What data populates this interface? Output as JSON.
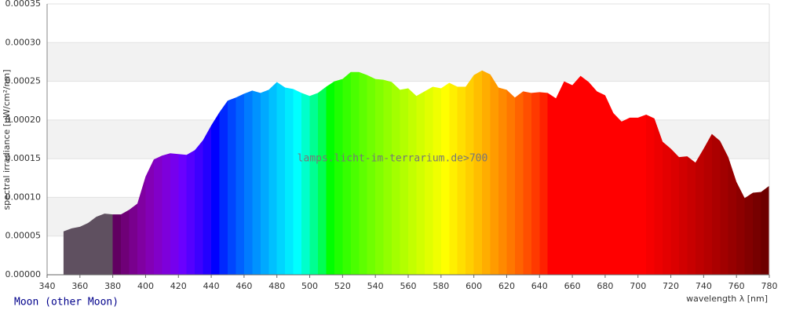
{
  "chart_data": {
    "type": "area",
    "title": "Moon (other Moon)",
    "watermark": "lamps.licht-im-terrarium.de>700",
    "x_label": "wavelength λ [nm]",
    "y_label": "spectral irradiance [µW/cm²/nm]",
    "x": [
      350,
      355,
      360,
      365,
      370,
      375,
      380,
      385,
      390,
      395,
      400,
      405,
      410,
      415,
      420,
      425,
      430,
      435,
      440,
      445,
      450,
      455,
      460,
      465,
      470,
      475,
      480,
      485,
      490,
      495,
      500,
      505,
      510,
      515,
      520,
      525,
      530,
      535,
      540,
      545,
      550,
      555,
      560,
      565,
      570,
      575,
      580,
      585,
      590,
      595,
      600,
      605,
      610,
      615,
      620,
      625,
      630,
      635,
      640,
      645,
      650,
      655,
      660,
      665,
      670,
      675,
      680,
      685,
      690,
      695,
      700,
      705,
      710,
      715,
      720,
      725,
      730,
      735,
      740,
      745,
      750,
      755,
      760,
      765,
      770,
      775,
      780
    ],
    "values": [
      5.6e-05,
      6e-05,
      6.2e-05,
      6.7e-05,
      7.5e-05,
      7.9e-05,
      7.8e-05,
      7.8e-05,
      8.4e-05,
      9.2e-05,
      0.000127,
      0.000149,
      0.000154,
      0.000157,
      0.000156,
      0.000155,
      0.000161,
      0.000174,
      0.000193,
      0.00021,
      0.000225,
      0.000229,
      0.000234,
      0.000238,
      0.000235,
      0.000239,
      0.000249,
      0.000242,
      0.00024,
      0.000235,
      0.000231,
      0.000235,
      0.000243,
      0.00025,
      0.000253,
      0.000262,
      0.000262,
      0.000258,
      0.000253,
      0.000252,
      0.000249,
      0.000239,
      0.000241,
      0.000231,
      0.000237,
      0.000243,
      0.000241,
      0.000248,
      0.000243,
      0.000243,
      0.000258,
      0.000264,
      0.000259,
      0.000242,
      0.000239,
      0.000229,
      0.000237,
      0.000235,
      0.000236,
      0.000235,
      0.000228,
      0.00025,
      0.000245,
      0.000257,
      0.000249,
      0.000237,
      0.000232,
      0.000209,
      0.000198,
      0.000203,
      0.000203,
      0.000207,
      0.000202,
      0.000172,
      0.000163,
      0.000152,
      0.000153,
      0.000145,
      0.000163,
      0.000182,
      0.000173,
      0.000152,
      0.00012,
      9.9e-05,
      0.000106,
      0.000107,
      0.000115
    ],
    "xlim": [
      340,
      780
    ],
    "xticks": [
      340,
      360,
      380,
      400,
      420,
      440,
      460,
      480,
      500,
      520,
      540,
      560,
      580,
      600,
      620,
      640,
      660,
      680,
      700,
      720,
      740,
      760,
      780
    ],
    "ylim": [
      0,
      0.00035
    ],
    "yticks": [
      {
        "value": 0,
        "label": "0.00000"
      },
      {
        "value": 5e-05,
        "label": "0.00005"
      },
      {
        "value": 0.0001,
        "label": "0.00010"
      },
      {
        "value": 0.00015,
        "label": "0.00015"
      },
      {
        "value": 0.0002,
        "label": "0.00020"
      },
      {
        "value": 0.00025,
        "label": "0.00025"
      },
      {
        "value": 0.0003,
        "label": "0.00030"
      },
      {
        "value": 0.00035,
        "label": "0.00035"
      }
    ],
    "grid": true
  }
}
